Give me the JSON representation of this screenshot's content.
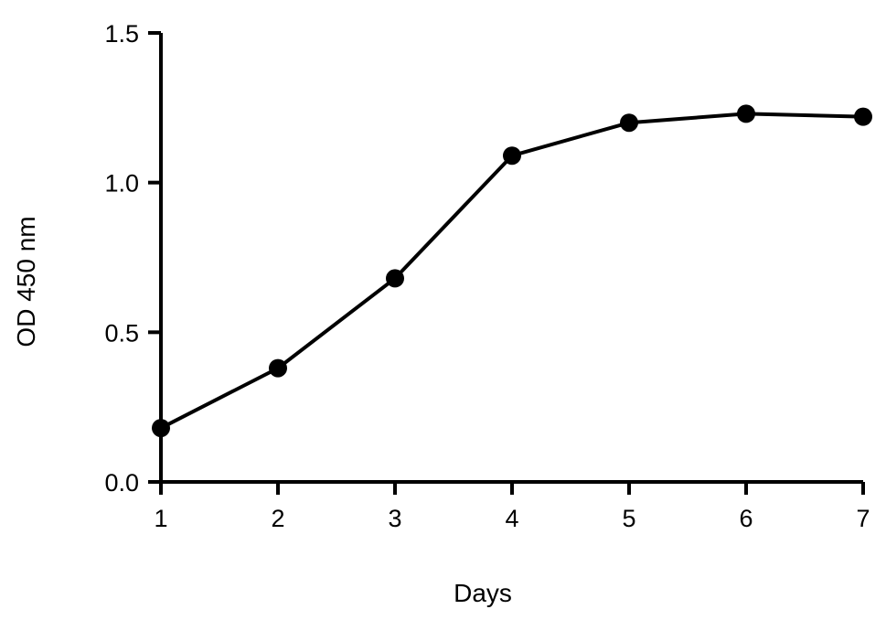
{
  "chart_data": {
    "type": "line",
    "xlabel": "Days",
    "ylabel": "OD 450 nm",
    "xlim": [
      1,
      7
    ],
    "ylim": [
      0.0,
      1.5
    ],
    "x_ticks": [
      "1",
      "2",
      "3",
      "4",
      "5",
      "6",
      "7"
    ],
    "y_ticks": [
      "0.0",
      "0.5",
      "1.0",
      "1.5"
    ],
    "grid": false,
    "legend": "none",
    "series": [
      {
        "x": [
          1,
          2,
          3,
          4,
          5,
          6,
          7
        ],
        "values": [
          0.18,
          0.38,
          0.68,
          1.09,
          1.2,
          1.23,
          1.22
        ],
        "color": "#000000",
        "marker": "circle"
      }
    ]
  }
}
